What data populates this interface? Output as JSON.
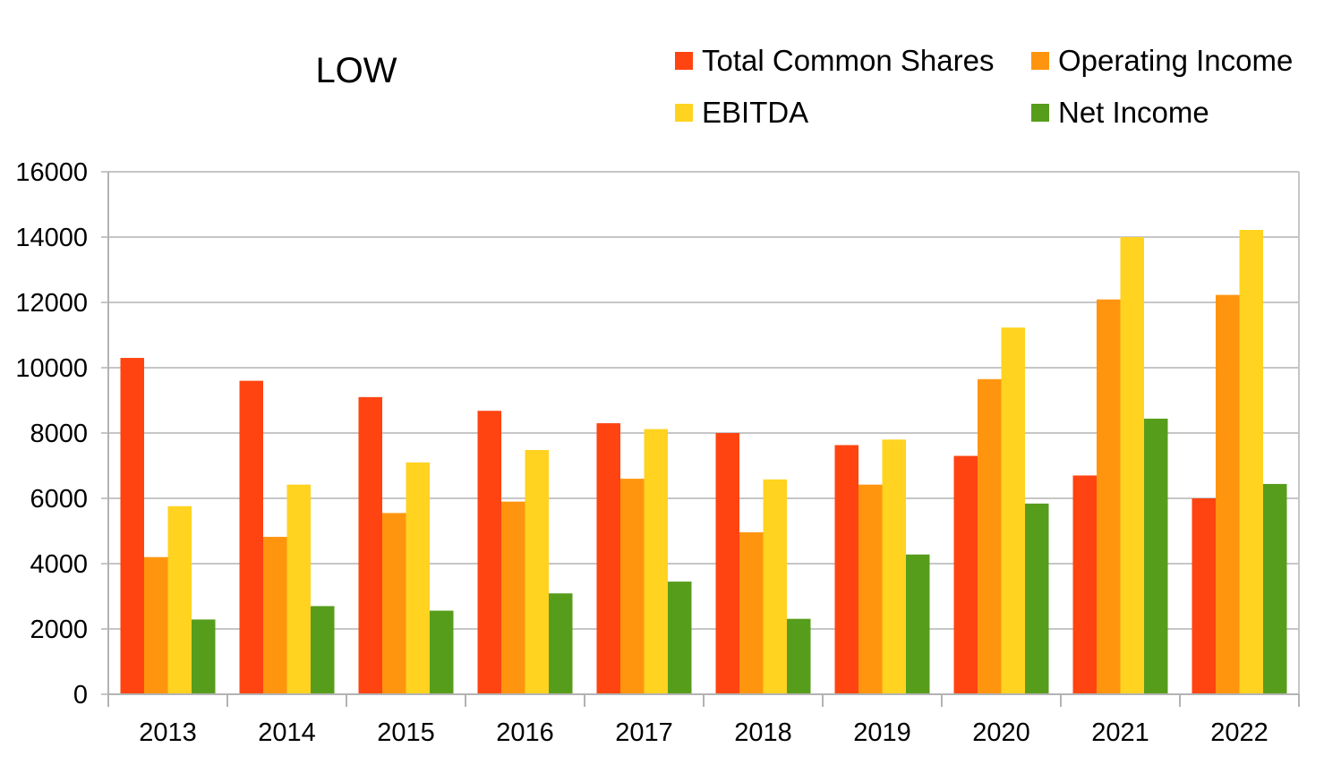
{
  "chart_data": {
    "type": "bar",
    "title": "LOW",
    "xlabel": "",
    "ylabel": "",
    "categories": [
      "2013",
      "2014",
      "2015",
      "2016",
      "2017",
      "2018",
      "2019",
      "2020",
      "2021",
      "2022"
    ],
    "ylim": [
      0,
      16000
    ],
    "yticks": [
      "0",
      "2000",
      "4000",
      "6000",
      "8000",
      "10000",
      "12000",
      "14000",
      "16000"
    ],
    "grid": true,
    "legend_position": "top-right",
    "series": [
      {
        "name": "Total Common Shares",
        "color": "#ff4411",
        "values": [
          10300,
          9600,
          9100,
          8680,
          8300,
          8000,
          7630,
          7300,
          6700,
          6000
        ]
      },
      {
        "name": "Operating Income",
        "color": "#ff950e",
        "values": [
          4200,
          4820,
          5550,
          5900,
          6600,
          4960,
          6420,
          9650,
          12090,
          12230
        ]
      },
      {
        "name": "EBITDA",
        "color": "#ffd320",
        "values": [
          5760,
          6420,
          7100,
          7480,
          8120,
          6580,
          7800,
          11230,
          14000,
          14220
        ]
      },
      {
        "name": "Net Income",
        "color": "#579d1c",
        "values": [
          2290,
          2700,
          2560,
          3090,
          3450,
          2310,
          4280,
          5840,
          8440,
          6440
        ]
      }
    ]
  }
}
